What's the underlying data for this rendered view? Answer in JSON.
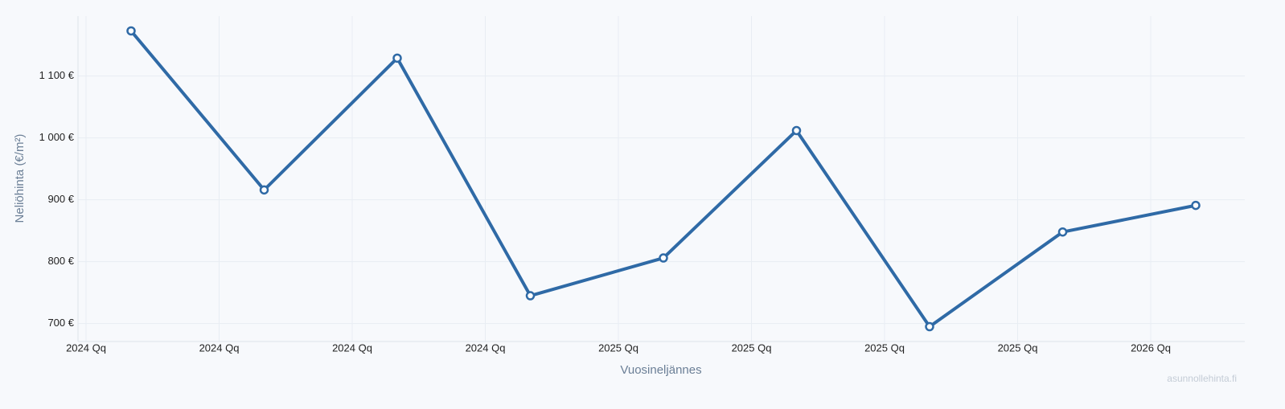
{
  "chart_data": {
    "type": "line",
    "x_label": "Vuosineljännes",
    "y_label": "Neliöhinta (€/m²)",
    "watermark": "asunnollehinta.fi",
    "categories": [
      "2024 Qq",
      "2024 Qq",
      "2024 Qq",
      "2024 Qq",
      "2025 Qq",
      "2025 Qq",
      "2025 Qq",
      "2025 Qq",
      "2026 Qq"
    ],
    "series": [
      {
        "name": "Neliöhinta",
        "color": "#2f6aa6",
        "values": [
          1173,
          916,
          1129,
          745,
          806,
          1012,
          695,
          848,
          891
        ]
      }
    ],
    "ylim": [
      671,
      1197
    ],
    "yticks": [
      {
        "value": 700,
        "label": "700 €"
      },
      {
        "value": 800,
        "label": "800 €"
      },
      {
        "value": 900,
        "label": "900 €"
      },
      {
        "value": 1000,
        "label": "1 000 €"
      },
      {
        "value": 1100,
        "label": "1 100 €"
      }
    ],
    "grid": true
  }
}
